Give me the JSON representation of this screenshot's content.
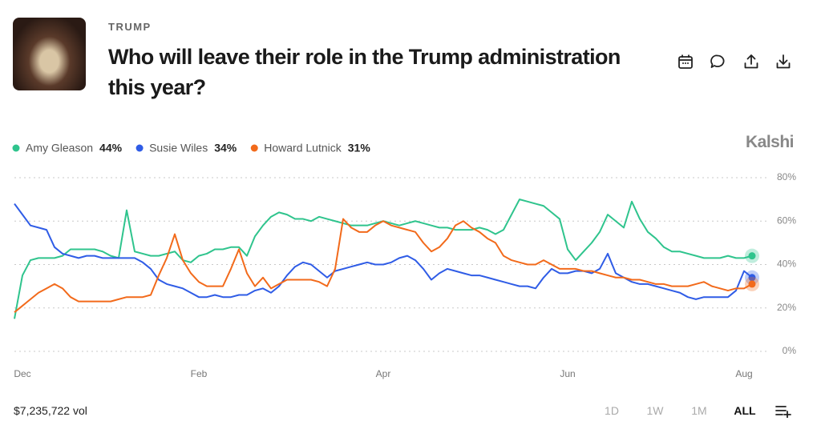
{
  "header": {
    "category": "TRUMP",
    "title": "Who will leave their role in the Trump administration this year?"
  },
  "brand": "Kalshi",
  "chart_data": {
    "type": "line",
    "categories": [
      null,
      "Dec",
      null,
      null,
      null,
      null,
      null,
      null,
      null,
      null,
      null,
      null,
      null,
      null,
      null,
      null,
      null,
      null,
      null,
      null,
      null,
      null,
      null,
      "Feb",
      null,
      null,
      null,
      null,
      null,
      null,
      null,
      null,
      null,
      null,
      null,
      null,
      null,
      null,
      null,
      null,
      null,
      null,
      null,
      null,
      null,
      null,
      "Apr",
      null,
      null,
      null,
      null,
      null,
      null,
      null,
      null,
      null,
      null,
      null,
      null,
      null,
      null,
      null,
      null,
      null,
      null,
      null,
      null,
      null,
      null,
      "Jun",
      null,
      null,
      null,
      null,
      null,
      null,
      null,
      null,
      null,
      null,
      null,
      null,
      null,
      null,
      null,
      null,
      null,
      null,
      null,
      null,
      null,
      "Aug",
      null
    ],
    "series": [
      {
        "name": "Amy Gleason",
        "color": "#2fc48d",
        "current_label": "44%",
        "values": [
          15,
          35,
          42,
          43,
          43,
          43,
          44,
          47,
          47,
          47,
          47,
          46,
          44,
          43,
          65,
          46,
          45,
          44,
          44,
          45,
          46,
          42,
          41,
          44,
          45,
          47,
          47,
          48,
          48,
          44,
          53,
          58,
          62,
          64,
          63,
          61,
          61,
          60,
          62,
          61,
          60,
          59,
          58,
          58,
          58,
          59,
          60,
          59,
          58,
          59,
          60,
          59,
          58,
          57,
          57,
          56,
          56,
          56,
          57,
          56,
          54,
          56,
          63,
          70,
          69,
          68,
          67,
          64,
          61,
          47,
          42,
          46,
          50,
          55,
          63,
          60,
          57,
          69,
          61,
          55,
          52,
          48,
          46,
          46,
          45,
          44,
          43,
          43,
          43,
          44,
          43,
          43,
          44
        ]
      },
      {
        "name": "Susie Wiles",
        "color": "#2f5ce6",
        "current_label": "34%",
        "values": [
          68,
          63,
          58,
          57,
          56,
          48,
          45,
          44,
          43,
          44,
          44,
          43,
          43,
          43,
          43,
          43,
          41,
          38,
          33,
          31,
          30,
          29,
          27,
          25,
          25,
          26,
          25,
          25,
          26,
          26,
          28,
          29,
          27,
          30,
          35,
          39,
          41,
          40,
          37,
          34,
          37,
          38,
          39,
          40,
          41,
          40,
          40,
          41,
          43,
          44,
          42,
          38,
          33,
          36,
          38,
          37,
          36,
          35,
          35,
          34,
          33,
          32,
          31,
          30,
          30,
          29,
          34,
          38,
          36,
          36,
          37,
          37,
          36,
          38,
          45,
          36,
          34,
          32,
          31,
          31,
          30,
          29,
          28,
          27,
          25,
          24,
          25,
          25,
          25,
          25,
          28,
          37,
          34
        ]
      },
      {
        "name": "Howard Lutnick",
        "color": "#f26a1b",
        "current_label": "31%",
        "values": [
          18,
          21,
          24,
          27,
          29,
          31,
          29,
          25,
          23,
          23,
          23,
          23,
          23,
          24,
          25,
          25,
          25,
          26,
          35,
          43,
          54,
          42,
          36,
          32,
          30,
          30,
          30,
          38,
          47,
          36,
          30,
          34,
          29,
          31,
          33,
          33,
          33,
          33,
          32,
          30,
          38,
          61,
          57,
          55,
          55,
          58,
          60,
          58,
          57,
          56,
          55,
          50,
          46,
          48,
          52,
          58,
          60,
          57,
          55,
          52,
          50,
          44,
          42,
          41,
          40,
          40,
          42,
          40,
          38,
          38,
          38,
          37,
          37,
          36,
          35,
          34,
          34,
          33,
          33,
          32,
          31,
          31,
          30,
          30,
          30,
          31,
          32,
          30,
          29,
          28,
          29,
          29,
          31
        ]
      }
    ],
    "ylim": [
      0,
      80
    ],
    "yticks": [
      {
        "value": 0,
        "label": "0%"
      },
      {
        "value": 20,
        "label": "20%"
      },
      {
        "value": 40,
        "label": "40%"
      },
      {
        "value": 60,
        "label": "60%"
      },
      {
        "value": 80,
        "label": "80%"
      }
    ],
    "grid": true
  },
  "volume": "$7,235,722 vol",
  "ranges": [
    {
      "label": "1D"
    },
    {
      "label": "1W"
    },
    {
      "label": "1M"
    },
    {
      "label": "ALL",
      "selected": true
    }
  ]
}
